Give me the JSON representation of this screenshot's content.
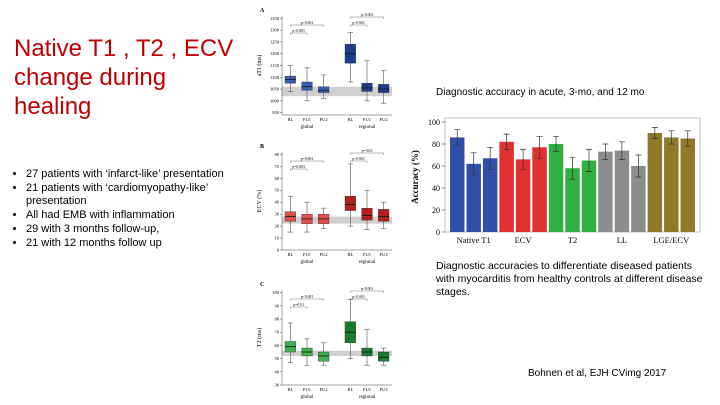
{
  "title": "Native T1 , T2 , ECV change during healing",
  "bullets": [
    "27 patients with ‘infarct-like’ presentation",
    "21 patients with ‘cardiomyopathy-like’ presentation",
    "All had EMB with inflammation",
    "29 with 3 months follow-up,",
    "21 with 12 months follow up"
  ],
  "accuracy_heading": "Diagnostic accuracy in acute, 3-mo, and 12 mo",
  "caption": "Diagnostic accuracies to differentiate diseased patients with myocarditis from healthy controls at different disease stages.",
  "citation": "Bohnen et al, EJH CVimg 2017",
  "chart_data": [
    {
      "type": "box",
      "panel": "A",
      "ylabel": "aT1 (ms)",
      "categories": [
        "BL",
        "FU1",
        "FU2",
        "BL",
        "FU1",
        "FU2"
      ],
      "groups": [
        "global",
        "regional"
      ],
      "colors": [
        "#3a5fb0",
        "#3a5fb0",
        "#3a5fb0",
        "#1f3c88",
        "#1f3c88",
        "#1f3c88"
      ],
      "boxes": [
        {
          "min": 1040,
          "q1": 1075,
          "median": 1090,
          "q3": 1105,
          "max": 1150
        },
        {
          "min": 1000,
          "q1": 1045,
          "median": 1060,
          "q3": 1080,
          "max": 1140
        },
        {
          "min": 1010,
          "q1": 1035,
          "median": 1045,
          "q3": 1060,
          "max": 1110
        },
        {
          "min": 1080,
          "q1": 1160,
          "median": 1200,
          "q3": 1240,
          "max": 1290
        },
        {
          "min": 1000,
          "q1": 1040,
          "median": 1055,
          "q3": 1075,
          "max": 1170
        },
        {
          "min": 990,
          "q1": 1035,
          "median": 1050,
          "q3": 1070,
          "max": 1130
        }
      ],
      "reference_band": [
        1020,
        1060
      ],
      "annotations": [
        "p<0.001",
        "p<0.001",
        "p<0.001",
        "p<0.001"
      ],
      "ylim": [
        940,
        1360
      ],
      "yticks": [
        950,
        1000,
        1050,
        1100,
        1150,
        1200,
        1250,
        1300,
        1350
      ]
    },
    {
      "type": "box",
      "panel": "B",
      "ylabel": "ECV (%)",
      "categories": [
        "BL",
        "FU1",
        "FU2",
        "BL",
        "FU1",
        "FU2"
      ],
      "groups": [
        "global",
        "regional"
      ],
      "colors": [
        "#e05050",
        "#e05050",
        "#e05050",
        "#b02020",
        "#b02020",
        "#b02020"
      ],
      "boxes": [
        {
          "min": 15,
          "q1": 24,
          "median": 28,
          "q3": 32,
          "max": 45
        },
        {
          "min": 15,
          "q1": 22,
          "median": 26,
          "q3": 30,
          "max": 40
        },
        {
          "min": 18,
          "q1": 22,
          "median": 26,
          "q3": 30,
          "max": 35
        },
        {
          "min": 20,
          "q1": 33,
          "median": 38,
          "q3": 45,
          "max": 72
        },
        {
          "min": 17,
          "q1": 25,
          "median": 29,
          "q3": 35,
          "max": 50
        },
        {
          "min": 18,
          "q1": 24,
          "median": 28,
          "q3": 34,
          "max": 40
        }
      ],
      "reference_band": [
        22,
        28
      ],
      "annotations": [
        "p=0.001",
        "p=0.003",
        "p=0.03",
        "p<0.001"
      ],
      "ylim": [
        0,
        82
      ],
      "yticks": [
        0,
        10,
        20,
        30,
        40,
        50,
        60,
        70,
        80
      ]
    },
    {
      "type": "box",
      "panel": "C",
      "ylabel": "T2 (ms)",
      "categories": [
        "BL",
        "FU1",
        "FU2",
        "BL",
        "FU1",
        "FU2"
      ],
      "groups": [
        "global",
        "regional"
      ],
      "colors": [
        "#40b050",
        "#40b050",
        "#40b050",
        "#1e7a30",
        "#1e7a30",
        "#1e7a30"
      ],
      "boxes": [
        {
          "min": 47,
          "q1": 55,
          "median": 59,
          "q3": 63,
          "max": 77
        },
        {
          "min": 45,
          "q1": 52,
          "median": 55,
          "q3": 58,
          "max": 65
        },
        {
          "min": 45,
          "q1": 48,
          "median": 52,
          "q3": 55,
          "max": 62
        },
        {
          "min": 50,
          "q1": 62,
          "median": 70,
          "q3": 78,
          "max": 95
        },
        {
          "min": 45,
          "q1": 52,
          "median": 55,
          "q3": 58,
          "max": 72
        },
        {
          "min": 45,
          "q1": 48,
          "median": 51,
          "q3": 55,
          "max": 58
        }
      ],
      "reference_band": [
        52,
        56
      ],
      "annotations": [
        "p<0.001",
        "p=0.01",
        "p<0.001",
        "p<0.001"
      ],
      "ylim": [
        30,
        102
      ],
      "yticks": [
        30,
        40,
        50,
        60,
        70,
        80,
        90,
        100
      ]
    },
    {
      "type": "bar",
      "ylabel": "Accuracy (%)",
      "groups": [
        "Native T1",
        "ECV",
        "T2",
        "LL",
        "LGE/ECV"
      ],
      "colors": [
        "#2f4fa8",
        "#e03030",
        "#30b040",
        "#8c8c8c",
        "#8f7a2a"
      ],
      "values": [
        86,
        62,
        67,
        82,
        66,
        77,
        80,
        58,
        65,
        73,
        74,
        60,
        90,
        86,
        85
      ],
      "errors": [
        7,
        10,
        10,
        7,
        9,
        10,
        7,
        10,
        10,
        7,
        8,
        10,
        5,
        6,
        7
      ],
      "ylim": [
        0,
        100
      ],
      "yticks": [
        0,
        20,
        40,
        60,
        80,
        100
      ]
    }
  ]
}
